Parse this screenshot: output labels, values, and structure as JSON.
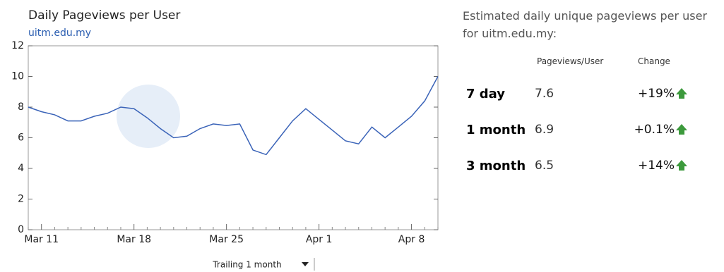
{
  "chart_data": {
    "type": "line",
    "title": "Daily Pageviews per User",
    "subtitle": "uitm.edu.my",
    "categories": [
      null,
      "Mar 11",
      null,
      null,
      null,
      null,
      null,
      null,
      "Mar 18",
      null,
      null,
      null,
      null,
      null,
      null,
      "Mar 25",
      null,
      null,
      null,
      null,
      null,
      null,
      "Apr 1",
      null,
      null,
      null,
      null,
      null,
      null,
      "Apr 8",
      null,
      null
    ],
    "values": [
      8.0,
      7.7,
      7.5,
      7.1,
      7.1,
      7.4,
      7.6,
      8.0,
      7.9,
      7.3,
      6.6,
      6.0,
      6.1,
      6.6,
      6.9,
      6.8,
      6.9,
      5.2,
      4.9,
      6.0,
      7.1,
      7.9,
      7.2,
      6.5,
      5.8,
      5.6,
      6.7,
      6.0,
      6.7,
      7.4,
      8.4,
      10.0
    ],
    "color": "#3a63b8",
    "ylim": [
      0,
      12
    ],
    "yticks": [
      0,
      2,
      4,
      6,
      8,
      10,
      12
    ],
    "grid": false,
    "range_selector": "Trailing 1 month"
  },
  "stats": {
    "heading": "Estimated daily unique pageviews per user for uitm.edu.my:",
    "columns": [
      "Pageviews/User",
      "Change"
    ],
    "rows": [
      [
        "7 day",
        "7.6",
        "+19%"
      ],
      [
        "1 month",
        "6.9",
        "+0.1%"
      ],
      [
        "3 month",
        "6.5",
        "+14%"
      ]
    ]
  }
}
